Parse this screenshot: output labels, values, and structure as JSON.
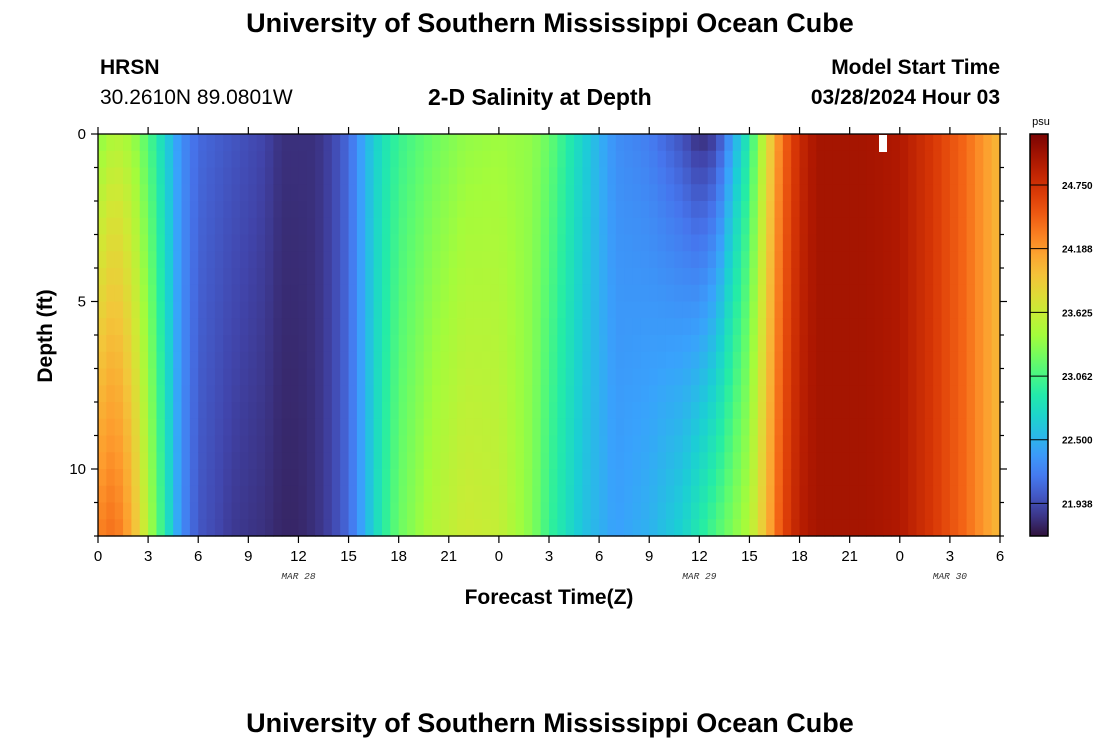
{
  "header": {
    "title": "University of Southern Mississippi Ocean Cube",
    "station": "HRSN",
    "coords": "30.2610N  89.0801W",
    "subtitle": "2-D Salinity at Depth",
    "model_start_label": "Model Start Time",
    "model_start_time": "03/28/2024 Hour 03"
  },
  "footer": {
    "title": "University of Southern Mississippi Ocean Cube"
  },
  "chart_data": {
    "type": "heatmap",
    "title": "2-D Salinity at Depth",
    "xlabel": "Forecast Time(Z)",
    "ylabel": "Depth (ft)",
    "x_tick_labels": [
      "0",
      "3",
      "6",
      "9",
      "12",
      "15",
      "18",
      "21",
      "0",
      "3",
      "6",
      "9",
      "12",
      "15",
      "18",
      "21",
      "0",
      "3",
      "6"
    ],
    "date_labels": [
      {
        "label": "MAR 28",
        "hour": 12
      },
      {
        "label": "MAR 29",
        "hour": 36
      },
      {
        "label": "MAR 30",
        "hour": 51
      }
    ],
    "x_range_hours": [
      0,
      54
    ],
    "y_ticks": [
      0,
      5,
      10
    ],
    "y_range_ft": [
      0,
      12
    ],
    "colorbar": {
      "unit": "psu",
      "ticks": [
        21.938,
        22.5,
        23.062,
        23.625,
        24.188,
        24.75
      ],
      "tick_labels": [
        "21.938",
        "22.500",
        "23.062",
        "23.625",
        "24.188",
        "24.750"
      ],
      "min": 21.65,
      "max": 25.2
    },
    "salinity_profile": {
      "hours": [
        0,
        1,
        2,
        3,
        4,
        5,
        6,
        8,
        10,
        11,
        12,
        13,
        14,
        15,
        16,
        17,
        18,
        20,
        22,
        24,
        26,
        27,
        29,
        31,
        33,
        35,
        36,
        37,
        38,
        39,
        40,
        41,
        42,
        43,
        44,
        45,
        46,
        48,
        50,
        52,
        53,
        54
      ],
      "surface_psu": [
        23.3,
        23.5,
        23.4,
        23.1,
        22.7,
        22.3,
        22.1,
        22.0,
        21.9,
        21.8,
        21.8,
        21.8,
        21.9,
        22.1,
        22.5,
        22.8,
        23.0,
        23.2,
        23.35,
        23.4,
        23.35,
        23.2,
        22.7,
        22.3,
        22.2,
        21.95,
        21.75,
        21.85,
        22.4,
        22.9,
        23.7,
        24.4,
        24.8,
        25.0,
        25.0,
        25.0,
        25.0,
        24.95,
        24.7,
        24.4,
        24.2,
        24.0
      ],
      "bottom_psu": [
        24.3,
        24.4,
        24.1,
        23.5,
        22.9,
        22.3,
        22.0,
        21.85,
        21.8,
        21.75,
        21.75,
        21.8,
        21.9,
        22.1,
        22.5,
        22.9,
        23.2,
        23.5,
        23.65,
        23.6,
        23.3,
        23.0,
        22.6,
        22.4,
        22.5,
        22.7,
        22.9,
        23.1,
        23.3,
        23.5,
        24.0,
        24.6,
        24.9,
        25.0,
        25.0,
        25.0,
        25.0,
        24.95,
        24.7,
        24.4,
        24.2,
        24.0
      ]
    }
  }
}
